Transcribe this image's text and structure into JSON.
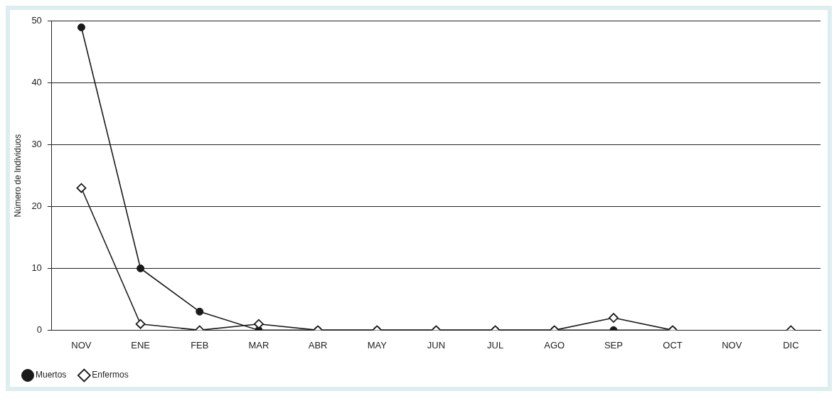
{
  "chart_data": {
    "type": "line",
    "ylabel": "Número de Individuos",
    "categories": [
      "NOV",
      "ENE",
      "FEB",
      "MAR",
      "ABR",
      "MAY",
      "JUN",
      "JUL",
      "AGO",
      "SEP",
      "OCT",
      "NOV",
      "DIC"
    ],
    "series": [
      {
        "name": "Muertos",
        "color": "#1a1a1a",
        "marker": "circle",
        "values": [
          49,
          10,
          3,
          0,
          0,
          0,
          0,
          0,
          0,
          0,
          0,
          null,
          null
        ]
      },
      {
        "name": "Enfermos",
        "color": "#1a1a1a",
        "marker": "diamond",
        "values": [
          23,
          1,
          0,
          1,
          0,
          0,
          0,
          0,
          0,
          2,
          0,
          null,
          0
        ]
      }
    ],
    "ylim": [
      0,
      50
    ],
    "yticks": [
      0,
      10,
      20,
      30,
      40,
      50
    ],
    "grid": "y",
    "legend": "bottom left",
    "line_style": "solid"
  }
}
